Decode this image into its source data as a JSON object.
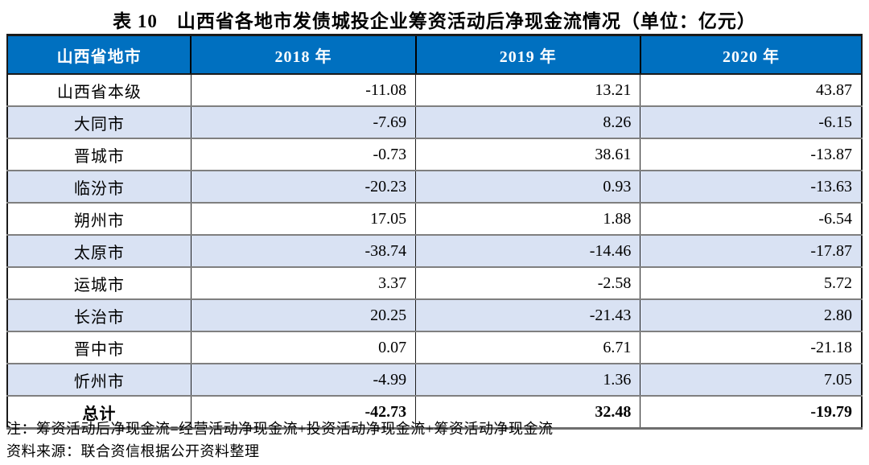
{
  "title": "表 10　山西省各地市发债城投企业筹资活动后净现金流情况（单位：亿元）",
  "table": {
    "columns": [
      "山西省地市",
      "2018 年",
      "2019 年",
      "2020 年"
    ],
    "unit": "亿元",
    "rows": [
      {
        "name": "山西省本级",
        "values": [
          "-11.08",
          "13.21",
          "43.87"
        ]
      },
      {
        "name": "大同市",
        "values": [
          "-7.69",
          "8.26",
          "-6.15"
        ]
      },
      {
        "name": "晋城市",
        "values": [
          "-0.73",
          "38.61",
          "-13.87"
        ]
      },
      {
        "name": "临汾市",
        "values": [
          "-20.23",
          "0.93",
          "-13.63"
        ]
      },
      {
        "name": "朔州市",
        "values": [
          "17.05",
          "1.88",
          "-6.54"
        ]
      },
      {
        "name": "太原市",
        "values": [
          "-38.74",
          "-14.46",
          "-17.87"
        ]
      },
      {
        "name": "运城市",
        "values": [
          "3.37",
          "-2.58",
          "5.72"
        ]
      },
      {
        "name": "长治市",
        "values": [
          "20.25",
          "-21.43",
          "2.80"
        ]
      },
      {
        "name": "晋中市",
        "values": [
          "0.07",
          "6.71",
          "-21.18"
        ]
      },
      {
        "name": "忻州市",
        "values": [
          "-4.99",
          "1.36",
          "7.05"
        ]
      },
      {
        "name": "总计",
        "values": [
          "-42.73",
          "32.48",
          "-19.79"
        ]
      }
    ]
  },
  "notes": [
    "注：筹资活动后净现金流=经营活动净现金流+投资活动净现金流+筹资活动净现金流",
    "资料来源：联合资信根据公开资料整理"
  ],
  "colors": {
    "header_bg": "#0070C0",
    "header_text": "#FFFFFF",
    "stripe_bg": "#D9E2F3",
    "row_line": "#7F7F7F",
    "border_dark": "#1A1A1A",
    "text": "#000000"
  }
}
